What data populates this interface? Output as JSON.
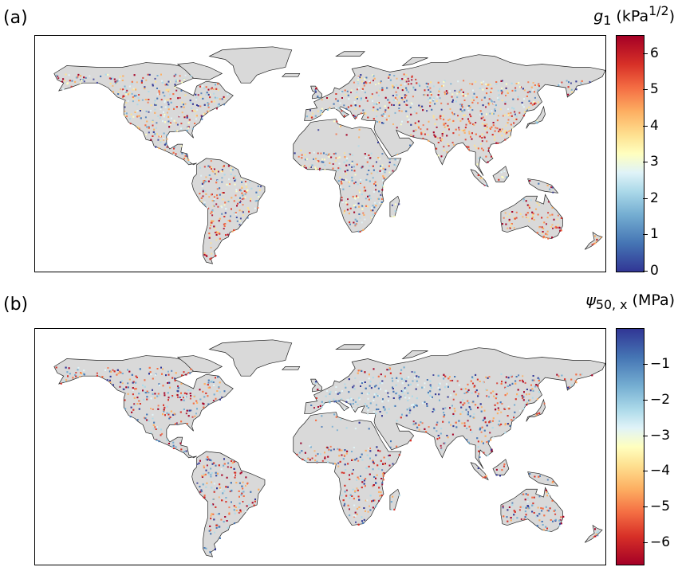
{
  "panels": [
    {
      "id": "a",
      "label": "(a)",
      "colorbar": {
        "symbol": "g",
        "subscript": "1",
        "unit_prefix": "(kPa",
        "unit_sup": "1/2",
        "unit_suffix": ")",
        "ticks": [
          "0",
          "1",
          "2",
          "3",
          "4",
          "5",
          "6"
        ],
        "range": [
          0,
          6.5
        ],
        "direction": "low-bottom",
        "colormap": "RdYlBu_r"
      },
      "map": {
        "projection": "equirectangular",
        "extent_lon": [
          -180,
          180
        ],
        "extent_lat": [
          -60,
          90
        ]
      }
    },
    {
      "id": "b",
      "label": "(b)",
      "colorbar": {
        "symbol": "ψ",
        "subscript": "50, x",
        "unit": "(MPa)",
        "ticks": [
          "−1",
          "−2",
          "−3",
          "−4",
          "−5",
          "−6"
        ],
        "range": [
          -6.6,
          0
        ],
        "direction": "low-bottom",
        "colormap": "RdYlBu"
      },
      "map": {
        "projection": "equirectangular",
        "extent_lon": [
          -180,
          180
        ],
        "extent_lat": [
          -60,
          90
        ]
      }
    }
  ],
  "colors": {
    "land": "#d9d9d9",
    "border": "#222222",
    "palette": [
      "#313695",
      "#4575b4",
      "#74add1",
      "#abd9e9",
      "#e0f3f8",
      "#ffffbf",
      "#fee090",
      "#fdae61",
      "#f46d43",
      "#d73027",
      "#a50026"
    ]
  }
}
